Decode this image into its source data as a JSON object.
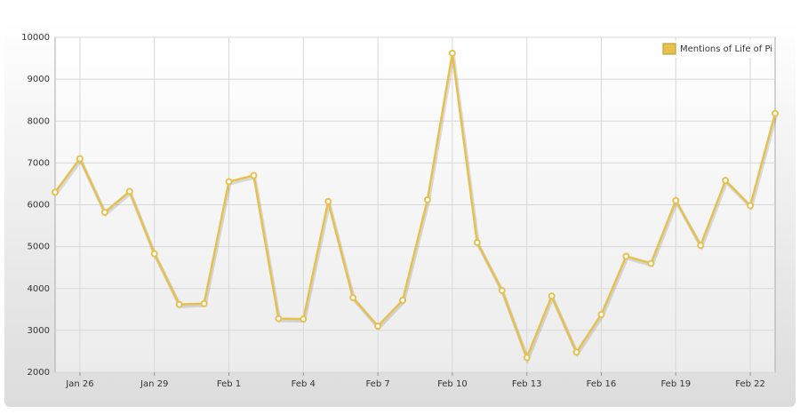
{
  "chart_data": {
    "type": "line",
    "categories": [
      null,
      "Jan 26",
      null,
      null,
      "Jan 29",
      null,
      null,
      "Feb 1",
      null,
      null,
      "Feb 4",
      null,
      null,
      "Feb 7",
      null,
      null,
      "Feb 10",
      null,
      null,
      "Feb 13",
      null,
      null,
      "Feb 16",
      null,
      null,
      "Feb 19",
      null,
      null,
      "Feb 22",
      null
    ],
    "series": [
      {
        "name": "Mentions of Life of Pi",
        "color": "#e6c14f",
        "values": [
          6300,
          7100,
          5820,
          6320,
          4830,
          3620,
          3640,
          6550,
          6700,
          3280,
          3270,
          6080,
          3780,
          3100,
          3720,
          6120,
          9620,
          5100,
          3950,
          2350,
          3820,
          2480,
          3380,
          4770,
          4600,
          6100,
          5030,
          6580,
          5980,
          8180
        ]
      }
    ],
    "ylim": [
      2000,
      10000
    ],
    "yticks": [
      2000,
      3000,
      4000,
      5000,
      6000,
      7000,
      8000,
      9000,
      10000
    ],
    "grid": true,
    "legend": "top-right"
  }
}
